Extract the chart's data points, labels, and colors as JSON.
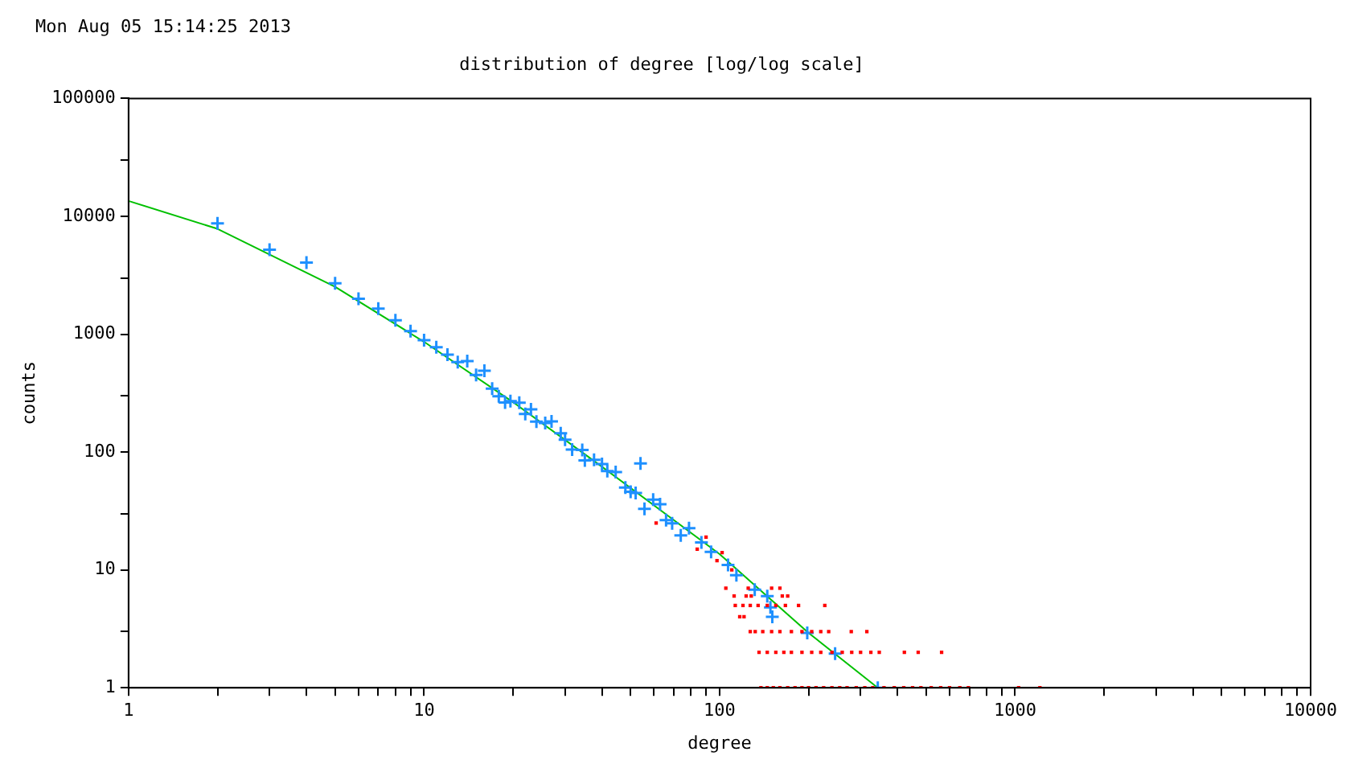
{
  "chart_data": {
    "type": "scatter",
    "title": "distribution of degree [log/log scale]",
    "xlabel": "degree",
    "ylabel": "counts",
    "annotations": [
      "Mon Aug 05 15:14:25 2013"
    ],
    "log": "xy",
    "grid": false,
    "legend": false,
    "xlim": [
      1,
      10000
    ],
    "ylim": [
      1,
      100000
    ],
    "xticks": [
      1,
      {
        "value": 2,
        "label": null
      },
      {
        "value": 3,
        "label": null
      },
      {
        "value": 4,
        "label": null
      },
      {
        "value": 5,
        "label": null
      },
      {
        "value": 6,
        "label": null
      },
      {
        "value": 7,
        "label": null
      },
      {
        "value": 8,
        "label": null
      },
      {
        "value": 9,
        "label": null
      },
      10,
      {
        "value": 20,
        "label": null
      },
      {
        "value": 30,
        "label": null
      },
      {
        "value": 40,
        "label": null
      },
      {
        "value": 50,
        "label": null
      },
      {
        "value": 60,
        "label": null
      },
      {
        "value": 70,
        "label": null
      },
      {
        "value": 80,
        "label": null
      },
      {
        "value": 90,
        "label": null
      },
      100,
      {
        "value": 200,
        "label": null
      },
      {
        "value": 300,
        "label": null
      },
      {
        "value": 400,
        "label": null
      },
      {
        "value": 500,
        "label": null
      },
      {
        "value": 600,
        "label": null
      },
      {
        "value": 700,
        "label": null
      },
      {
        "value": 800,
        "label": null
      },
      {
        "value": 900,
        "label": null
      },
      1000,
      {
        "value": 2000,
        "label": null
      },
      {
        "value": 3000,
        "label": null
      },
      {
        "value": 4000,
        "label": null
      },
      {
        "value": 5000,
        "label": null
      },
      {
        "value": 6000,
        "label": null
      },
      {
        "value": 7000,
        "label": null
      },
      {
        "value": 8000,
        "label": null
      },
      {
        "value": 9000,
        "label": null
      },
      10000
    ],
    "yticks": [
      1,
      {
        "value": 3,
        "label": null
      },
      10,
      {
        "value": 30,
        "label": null
      },
      100,
      {
        "value": 300,
        "label": null
      },
      1000,
      {
        "value": 3000,
        "label": null
      },
      10000,
      {
        "value": 30000,
        "label": null
      },
      100000
    ],
    "series": [
      {
        "type": "scatter",
        "marker": "square",
        "color": "#ff0000",
        "x": [
          138,
          145,
          152,
          160,
          170,
          180,
          190,
          200,
          212,
          225,
          240,
          255,
          270,
          290,
          310,
          330,
          360,
          390,
          420,
          450,
          480,
          520,
          560,
          600,
          650,
          695,
          1028,
          1213,
          136,
          145,
          155,
          165,
          175,
          190,
          205,
          220,
          240,
          260,
          280,
          300,
          325,
          347,
          422,
          470,
          564,
          127,
          132,
          140,
          150,
          160,
          175,
          190,
          205,
          220,
          234,
          279,
          315,
          113,
          120,
          127,
          135,
          145,
          155,
          167,
          185,
          227,
          117,
          121,
          112,
          123,
          128,
          163,
          170,
          105,
          125,
          150,
          160,
          61,
          84,
          90,
          98,
          102,
          110
        ],
        "values": [
          1,
          1,
          1,
          1,
          1,
          1,
          1,
          1,
          1,
          1,
          1,
          1,
          1,
          1,
          1,
          1,
          1,
          1,
          1,
          1,
          1,
          1,
          1,
          1,
          1,
          1,
          1,
          1,
          2,
          2,
          2,
          2,
          2,
          2,
          2,
          2,
          2,
          2,
          2,
          2,
          2,
          2,
          2,
          2,
          2,
          3,
          3,
          3,
          3,
          3,
          3,
          3,
          3,
          3,
          3,
          3,
          3,
          5,
          5,
          5,
          5,
          5,
          5,
          5,
          5,
          5,
          4,
          4,
          6,
          6,
          6,
          6,
          6,
          7,
          7,
          7,
          7,
          25,
          15,
          19,
          12,
          14,
          10
        ]
      },
      {
        "type": "scatter",
        "marker": "cross",
        "color": "#1e90ff",
        "x": [
          2,
          3,
          4,
          5,
          6,
          7,
          8,
          9,
          10,
          11,
          12,
          13,
          14,
          15,
          16,
          17,
          17.9,
          18.8,
          19.6,
          21,
          22,
          23,
          24,
          25.7,
          27,
          29,
          30,
          31.7,
          34.3,
          35,
          37.6,
          40,
          41.7,
          44.5,
          48,
          50,
          52,
          54,
          59.6,
          62.9,
          55.7,
          65.9,
          69.1,
          73.9,
          78.8,
          86.8,
          93.6,
          106.8,
          114,
          131.5,
          145,
          148.6,
          150.8,
          198,
          246,
          343
        ],
        "values": [
          8700,
          5200,
          4050,
          2700,
          2000,
          1650,
          1310,
          1060,
          890,
          775,
          670,
          580,
          590,
          450,
          490,
          345,
          297,
          263,
          270,
          262,
          210,
          230,
          181,
          176,
          182,
          144,
          127,
          105,
          104,
          85,
          86,
          79,
          69,
          67.5,
          50,
          46,
          45,
          80,
          39.4,
          36,
          33,
          26.4,
          24.8,
          19.6,
          22.6,
          17.1,
          14.2,
          11,
          9,
          6.8,
          6,
          4.8,
          4,
          2.92,
          1.95,
          1
        ]
      },
      {
        "type": "line",
        "marker": "none",
        "color": "#00c000",
        "x": [
          1,
          2,
          5,
          10,
          20,
          40,
          100,
          200,
          343
        ],
        "values": [
          13500,
          7830,
          2520,
          861,
          265,
          75,
          13.6,
          2.92,
          1
        ]
      }
    ]
  }
}
